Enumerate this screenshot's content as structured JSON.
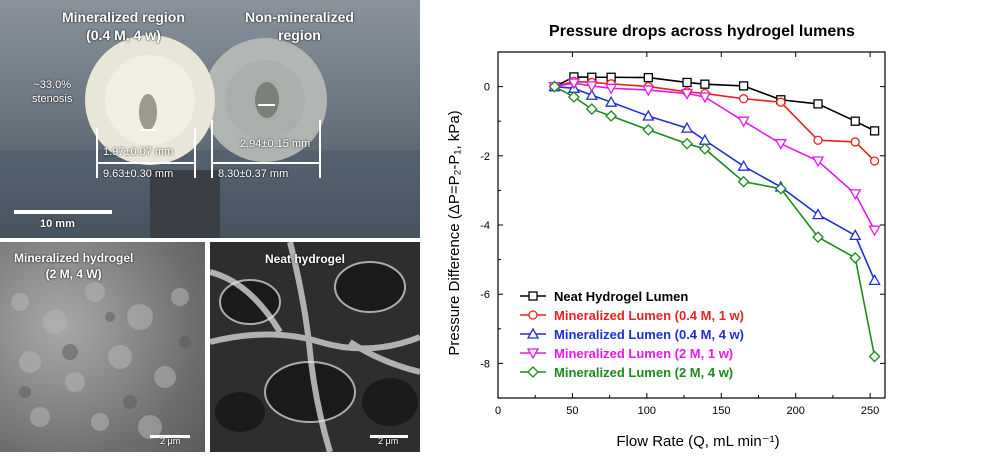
{
  "photo": {
    "label_mineralized_line1": "Mineralized  region",
    "label_mineralized_line2": "(0.4 M, 4 w)",
    "label_non_line1": "Non-mineralized",
    "label_non_line2": "region",
    "stenosis_line1": "~33.0%",
    "stenosis_line2": "stenosis",
    "dim_inner_left": "1.97±0.07 mm",
    "dim_outer_left": "9.63±0.30 mm",
    "dim_inner_right": "2.94±0.15 mm",
    "dim_outer_right": "8.30±0.37 mm",
    "scale_bar": "10 mm"
  },
  "sem_left": {
    "title_line1": "Mineralized  hydrogel",
    "title_line2": "(2 M, 4 W)",
    "scale": "2 μm"
  },
  "sem_right": {
    "title": "Neat hydrogel",
    "scale": "2 μm"
  },
  "colors": {
    "neat": "#000000",
    "min_04_1": "#e8231f",
    "min_04_4": "#1f2fd6",
    "min_2_1": "#e619e6",
    "min_2_4": "#1f8a1f"
  },
  "chart_data": {
    "type": "line",
    "title": "Pressure drops across hydrogel lumens",
    "xlabel": "Flow Rate (Q, mL min⁻¹)",
    "ylabel": "Pressure Difference (ΔP=P₂-P₁, kPa)",
    "xlim": [
      0,
      260
    ],
    "ylim": [
      -9,
      1
    ],
    "xticks": [
      0,
      50,
      100,
      150,
      200,
      250
    ],
    "yticks": [
      0,
      -2,
      -4,
      -6,
      -8
    ],
    "legend_position": "bottom-left",
    "series": [
      {
        "name": "Neat Hydrogel Lumen",
        "color": "#000000",
        "marker": "square",
        "x": [
          38,
          51,
          63,
          76,
          101,
          127,
          139,
          165,
          190,
          215,
          240,
          253
        ],
        "y": [
          0,
          0.28,
          0.27,
          0.27,
          0.26,
          0.12,
          0.07,
          0.02,
          -0.38,
          -0.5,
          -1.0,
          -1.28
        ]
      },
      {
        "name": "Mineralized Lumen (0.4 M, 1 w)",
        "color": "#e8231f",
        "marker": "circle",
        "x": [
          38,
          51,
          63,
          76,
          101,
          127,
          139,
          165,
          190,
          215,
          240,
          253
        ],
        "y": [
          0,
          0.15,
          0.12,
          0.08,
          0.0,
          -0.15,
          -0.2,
          -0.35,
          -0.45,
          -1.55,
          -1.6,
          -2.15
        ]
      },
      {
        "name": "Mineralized Lumen (0.4 M, 4 w)",
        "color": "#1f2fd6",
        "marker": "triangle-up",
        "x": [
          38,
          51,
          63,
          76,
          101,
          127,
          139,
          165,
          190,
          215,
          240,
          253
        ],
        "y": [
          0,
          -0.05,
          -0.25,
          -0.45,
          -0.85,
          -1.2,
          -1.55,
          -2.3,
          -2.9,
          -3.7,
          -4.3,
          -5.6
        ]
      },
      {
        "name": "Mineralized Lumen (2 M, 1 w)",
        "color": "#e619e6",
        "marker": "triangle-down",
        "x": [
          38,
          51,
          63,
          76,
          101,
          127,
          139,
          165,
          190,
          215,
          240,
          253
        ],
        "y": [
          0,
          0.1,
          0.02,
          -0.05,
          -0.1,
          -0.2,
          -0.3,
          -1.0,
          -1.65,
          -2.15,
          -3.1,
          -4.15
        ]
      },
      {
        "name": "Mineralized Lumen (2 M, 4 w)",
        "color": "#1f8a1f",
        "marker": "diamond",
        "x": [
          38,
          51,
          63,
          76,
          101,
          127,
          139,
          165,
          190,
          215,
          240,
          253
        ],
        "y": [
          0,
          -0.3,
          -0.65,
          -0.85,
          -1.25,
          -1.65,
          -1.8,
          -2.75,
          -2.95,
          -4.35,
          -4.95,
          -7.8
        ]
      }
    ]
  }
}
